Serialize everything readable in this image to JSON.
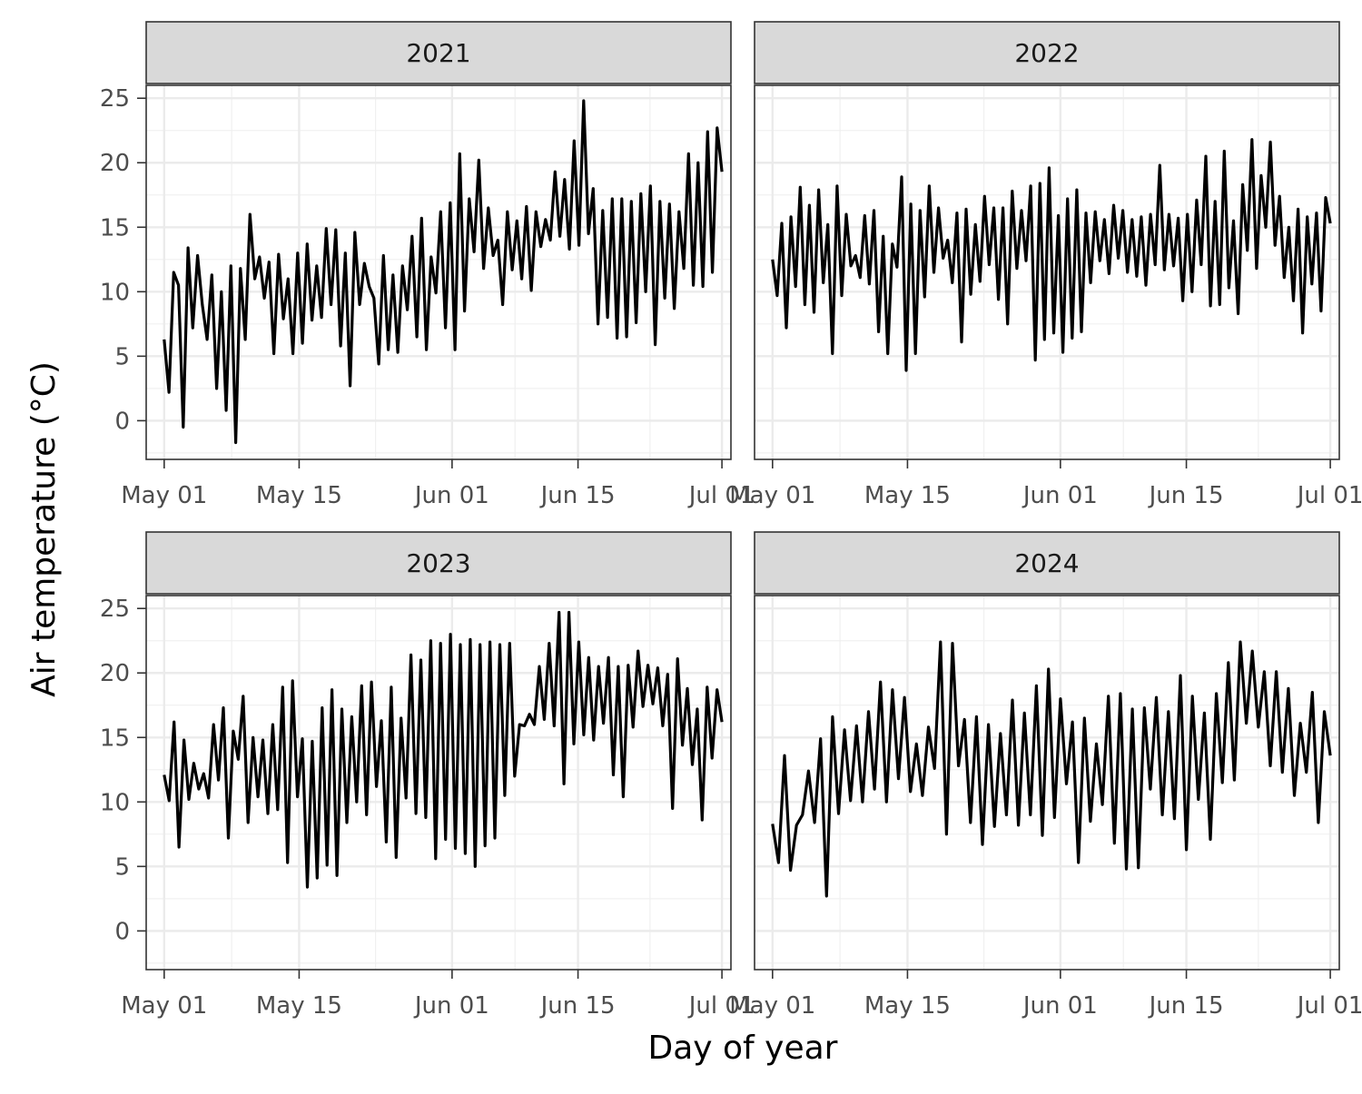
{
  "chart_data": {
    "type": "line",
    "layout": "facet-grid-2x2",
    "xlabel": "Day of year",
    "ylabel": "Air temperature (°C)",
    "ylim": [
      -3,
      26
    ],
    "y_ticks": [
      0,
      5,
      10,
      15,
      20,
      25
    ],
    "x_domain_day": [
      -2,
      63
    ],
    "x_ticks": [
      {
        "label": "May 01",
        "day": 0
      },
      {
        "label": "May 15",
        "day": 15
      },
      {
        "label": "Jun 01",
        "day": 32
      },
      {
        "label": "Jun 15",
        "day": 46
      },
      {
        "label": "Jul 01",
        "day": 62
      }
    ],
    "grid": true,
    "line_color": "#000000",
    "strip_fill": "#d9d9d9",
    "panels": [
      {
        "year": "2021",
        "values": [
          6.3,
          2.2,
          11.5,
          10.5,
          -0.5,
          13.4,
          7.2,
          12.8,
          9.0,
          6.3,
          11.3,
          2.5,
          10.0,
          0.8,
          12.0,
          -1.7,
          11.8,
          6.3,
          16.0,
          11.0,
          12.7,
          9.5,
          12.3,
          5.2,
          12.9,
          7.9,
          11.0,
          5.2,
          13.0,
          6.0,
          13.7,
          7.8,
          12.0,
          8.0,
          14.9,
          9.0,
          14.8,
          5.8,
          13.0,
          2.7,
          14.6,
          9.0,
          12.2,
          10.4,
          9.5,
          4.4,
          12.8,
          5.5,
          11.3,
          5.3,
          12.0,
          8.6,
          14.3,
          6.5,
          15.7,
          5.5,
          12.7,
          9.9,
          16.2,
          7.2,
          16.9,
          5.5,
          20.7,
          8.5,
          17.2,
          13.1,
          20.2,
          11.8,
          16.5,
          12.8,
          14.0,
          9.0,
          16.2,
          11.7,
          15.5,
          11.0,
          16.6,
          10.1,
          16.2,
          13.5,
          15.6,
          14.0,
          19.3,
          14.3,
          18.7,
          13.3,
          21.7,
          13.6,
          24.8,
          14.5,
          18.0,
          7.5,
          16.3,
          8.0,
          17.2,
          6.4,
          17.2,
          6.5,
          17.0,
          7.6,
          17.6,
          10.0,
          18.2,
          5.9,
          17.0,
          9.5,
          16.8,
          8.7,
          16.2,
          11.8,
          20.7,
          10.5,
          20.0,
          10.4,
          22.4,
          11.5,
          22.7,
          19.3
        ]
      },
      {
        "year": "2022",
        "values": [
          12.5,
          9.7,
          15.3,
          7.2,
          15.8,
          10.4,
          18.1,
          9.0,
          16.7,
          8.4,
          17.9,
          10.7,
          15.2,
          5.2,
          18.2,
          9.7,
          16.0,
          12.0,
          12.8,
          11.1,
          15.9,
          10.6,
          16.3,
          6.9,
          14.3,
          5.2,
          13.7,
          11.9,
          18.9,
          3.9,
          16.8,
          5.2,
          16.3,
          9.6,
          18.2,
          11.5,
          16.5,
          12.6,
          14.0,
          10.7,
          16.1,
          6.1,
          16.4,
          9.8,
          15.2,
          10.8,
          17.4,
          12.1,
          16.5,
          9.4,
          16.5,
          7.5,
          17.8,
          11.8,
          16.3,
          12.4,
          18.2,
          4.7,
          18.4,
          6.3,
          19.6,
          6.8,
          15.9,
          5.3,
          17.2,
          6.4,
          17.9,
          6.9,
          16.1,
          10.7,
          16.2,
          12.4,
          15.6,
          11.4,
          16.7,
          12.6,
          16.3,
          11.5,
          15.6,
          11.2,
          15.8,
          10.5,
          16.0,
          12.1,
          19.8,
          11.7,
          16.0,
          12.0,
          15.7,
          9.3,
          16.0,
          10.0,
          17.1,
          12.1,
          20.5,
          8.9,
          17.0,
          9.0,
          20.9,
          10.3,
          15.5,
          8.3,
          18.3,
          13.2,
          21.8,
          11.8,
          19.0,
          15.0,
          21.6,
          13.6,
          17.4,
          11.1,
          15.0,
          9.3,
          16.4,
          6.8,
          15.8,
          10.6,
          16.1,
          8.5,
          17.3,
          15.3
        ]
      },
      {
        "year": "2023",
        "values": [
          12.1,
          10.1,
          16.2,
          6.5,
          14.8,
          10.2,
          13.0,
          11.0,
          12.2,
          10.3,
          16.0,
          11.7,
          17.3,
          7.2,
          15.5,
          13.3,
          18.2,
          8.4,
          15.0,
          10.4,
          14.8,
          9.1,
          16.0,
          9.4,
          18.9,
          5.3,
          19.4,
          10.4,
          14.9,
          3.4,
          14.7,
          4.1,
          17.3,
          5.1,
          18.7,
          4.3,
          17.2,
          8.4,
          16.6,
          10.0,
          19.0,
          9.0,
          19.3,
          11.2,
          16.3,
          6.9,
          18.9,
          5.7,
          16.5,
          10.3,
          21.4,
          9.1,
          21.0,
          8.8,
          22.5,
          5.6,
          22.3,
          7.1,
          23.0,
          6.4,
          22.2,
          6.0,
          22.6,
          5.0,
          22.2,
          6.6,
          22.4,
          7.2,
          22.2,
          10.5,
          22.3,
          12.0,
          16.0,
          15.9,
          16.8,
          16.0,
          20.5,
          16.4,
          22.3,
          15.9,
          24.7,
          11.4,
          24.7,
          14.5,
          22.4,
          15.2,
          21.2,
          14.8,
          20.5,
          16.1,
          21.2,
          12.1,
          20.5,
          10.4,
          20.6,
          15.8,
          21.7,
          17.4,
          20.6,
          17.6,
          20.4,
          15.9,
          19.9,
          9.5,
          21.1,
          14.4,
          18.8,
          12.9,
          17.2,
          8.6,
          18.9,
          13.4,
          18.7,
          16.2
        ]
      },
      {
        "year": "2024",
        "values": [
          8.3,
          5.3,
          13.6,
          4.7,
          8.2,
          9.0,
          12.4,
          8.4,
          14.9,
          2.7,
          16.6,
          9.1,
          15.6,
          10.1,
          15.9,
          10.0,
          17.0,
          11.0,
          19.3,
          10.0,
          18.7,
          11.8,
          18.1,
          10.8,
          14.5,
          10.5,
          15.8,
          12.6,
          22.4,
          7.5,
          22.3,
          12.8,
          16.4,
          8.4,
          16.6,
          6.7,
          16.0,
          8.1,
          15.3,
          9.0,
          17.9,
          8.2,
          16.9,
          9.0,
          19.0,
          7.4,
          20.3,
          8.8,
          18.0,
          11.4,
          16.2,
          5.3,
          16.5,
          8.5,
          14.5,
          9.8,
          18.2,
          6.8,
          18.4,
          4.8,
          17.2,
          4.9,
          17.3,
          11.0,
          18.1,
          9.0,
          17.0,
          8.7,
          19.8,
          6.3,
          18.2,
          10.2,
          16.9,
          7.1,
          18.4,
          11.5,
          20.8,
          11.7,
          22.4,
          16.1,
          21.7,
          15.8,
          20.1,
          12.8,
          20.1,
          12.3,
          18.8,
          10.5,
          16.1,
          12.3,
          18.5,
          8.4,
          17.0,
          13.6
        ]
      }
    ]
  }
}
